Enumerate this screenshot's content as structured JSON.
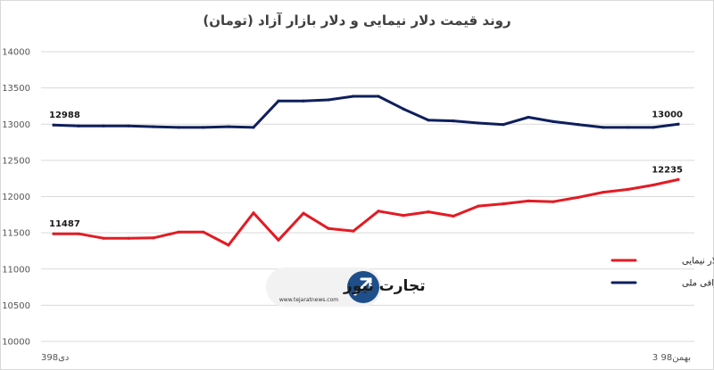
{
  "chart_data": {
    "type": "line",
    "title": "روند قیمت دلار نیمایی و دلار بازار آزاد (تومان)",
    "xlabel": "",
    "ylabel": "",
    "ylim": [
      10000,
      14000
    ],
    "yticks": [
      10000,
      10500,
      11000,
      11500,
      12000,
      12500,
      13000,
      13500,
      14000
    ],
    "ytick_labels": [
      "10000",
      "10500",
      "11000",
      "11500",
      "12000",
      "12500",
      "13000",
      "13500",
      "14000"
    ],
    "x_start_label": "3دی98",
    "x_end_label": "3 بهمن98",
    "grid": "horizontal",
    "legend_position": "right",
    "series": [
      {
        "name": "دلار نیمایی",
        "color": "#e31b23",
        "values": [
          11487,
          11487,
          11425,
          11425,
          11430,
          11510,
          11510,
          11330,
          11775,
          11400,
          11770,
          11560,
          11525,
          11800,
          11740,
          11790,
          11730,
          11870,
          11900,
          11940,
          11930,
          11990,
          12060,
          12100,
          12160,
          12235
        ],
        "first_label": "11487",
        "last_label": "12235"
      },
      {
        "name": "دلار صرافی ملی",
        "color": "#0f1f5c",
        "values": [
          12988,
          12975,
          12975,
          12975,
          12965,
          12955,
          12955,
          12965,
          12955,
          13320,
          13320,
          13335,
          13385,
          13385,
          13210,
          13055,
          13045,
          13015,
          12995,
          13095,
          13035,
          12995,
          12955,
          12955,
          12955,
          13000
        ],
        "first_label": "12988",
        "last_label": "13000"
      }
    ]
  },
  "watermark": {
    "brand_text": "تجارت نیوز",
    "url_text": "www.tejaratnews.com",
    "accent": "#1e4f8a",
    "highlight": "#e8e8e8"
  }
}
